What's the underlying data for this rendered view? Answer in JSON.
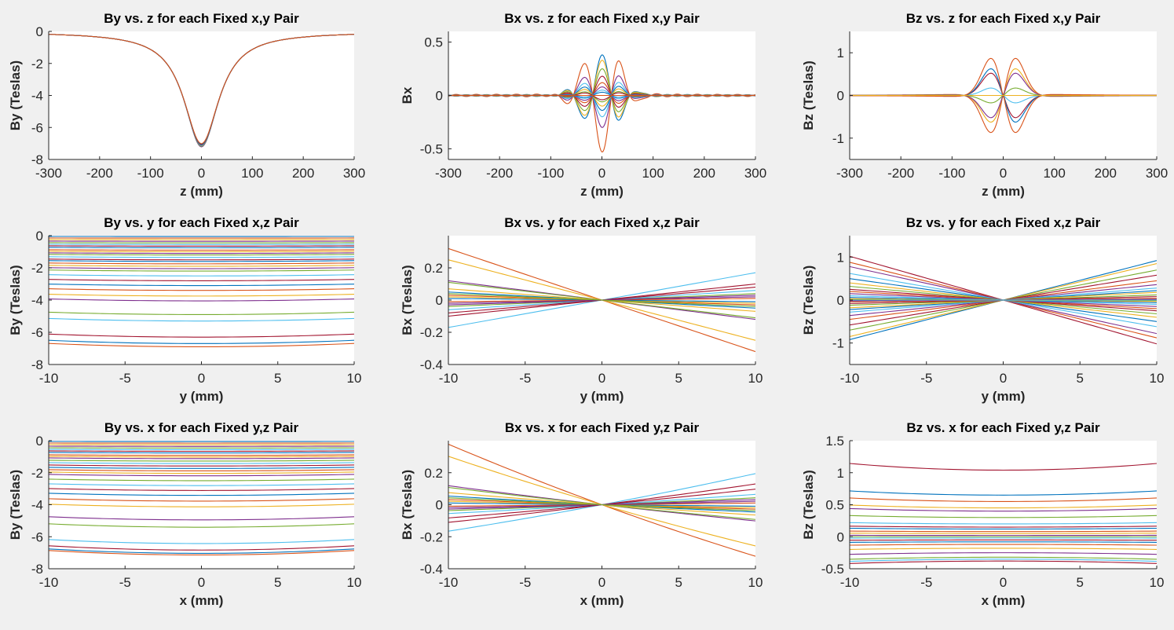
{
  "colors": {
    "background": "#f0f0f0",
    "axes_bg": "#ffffff",
    "axis": "#262626",
    "palette": [
      "#0072bd",
      "#d95319",
      "#edb120",
      "#7e2f8e",
      "#77ac30",
      "#4dbeee",
      "#a2142f"
    ]
  },
  "chart_data": [
    {
      "type": "line",
      "id": "by_z",
      "title": "By vs. z for each Fixed x,y Pair",
      "xlabel": "z (mm)",
      "ylabel": "By (Teslas)",
      "xlim": [
        -300,
        300
      ],
      "ylim": [
        -8,
        0
      ],
      "xticks": [
        -300,
        -200,
        -100,
        0,
        100,
        200,
        300
      ],
      "xticklabels": [
        "-300",
        "-200",
        "-100",
        "0",
        "100",
        "200",
        "300"
      ],
      "yticks": [
        -8,
        -6,
        -4,
        -2,
        0
      ],
      "yticklabels": [
        "-8",
        "-6",
        "-4",
        "-2",
        "0"
      ],
      "series_count": 6,
      "note": "Near-identical dip curves; minimum about -7.1 T at z = 0, rising toward -0.05 T at z = +/-300 mm"
    },
    {
      "type": "line",
      "id": "bx_z",
      "title": "Bx vs. z for each Fixed x,y Pair",
      "xlabel": "z (mm)",
      "ylabel": "Bx",
      "xlim": [
        -300,
        300
      ],
      "ylim": [
        -0.6,
        0.6
      ],
      "xticks": [
        -300,
        -200,
        -100,
        0,
        100,
        200,
        300
      ],
      "xticklabels": [
        "-300",
        "-200",
        "-100",
        "0",
        "100",
        "200",
        "300"
      ],
      "yticks": [
        -0.5,
        0,
        0.5
      ],
      "yticklabels": [
        "-0.5",
        "0",
        "0.5"
      ],
      "peak_amplitudes": [
        0.38,
        -0.53,
        0.33,
        -0.3,
        0.25,
        -0.2,
        0.18,
        -0.14,
        0.12,
        -0.1,
        0.08,
        -0.06,
        0.05,
        -0.04,
        0.03,
        0
      ],
      "note": "Oscillating curves centered at z = 0 decaying with |z|"
    },
    {
      "type": "line",
      "id": "bz_z",
      "title": "Bz vs. z for each Fixed x,y Pair",
      "xlabel": "z (mm)",
      "ylabel": "Bz (Teslas)",
      "xlim": [
        -300,
        300
      ],
      "ylim": [
        -1.5,
        1.5
      ],
      "xticks": [
        -300,
        -200,
        -100,
        0,
        100,
        200,
        300
      ],
      "xticklabels": [
        "-300",
        "-200",
        "-100",
        "0",
        "100",
        "200",
        "300"
      ],
      "yticks": [
        -1,
        0,
        1
      ],
      "yticklabels": [
        "-1",
        "0",
        "1"
      ],
      "lobe_amplitudes": [
        1.0,
        0.72,
        0.6,
        0.2,
        -0.2,
        -0.6,
        -0.72,
        -1.0,
        0
      ],
      "note": "Antisymmetric lobes near z = -20 and z = +20 mm"
    },
    {
      "type": "line",
      "id": "by_y",
      "title": "By vs. y for each Fixed x,z Pair",
      "xlabel": "y (mm)",
      "ylabel": "By (Teslas)",
      "xlim": [
        -10,
        10
      ],
      "ylim": [
        -8,
        0
      ],
      "xticks": [
        -10,
        -5,
        0,
        5,
        10
      ],
      "xticklabels": [
        "-10",
        "-5",
        "0",
        "5",
        "10"
      ],
      "yticks": [
        -8,
        -6,
        -4,
        -2,
        0
      ],
      "yticklabels": [
        "-8",
        "-6",
        "-4",
        "-2",
        "0"
      ],
      "levels": [
        -0.05,
        -0.15,
        -0.25,
        -0.35,
        -0.45,
        -0.55,
        -0.65,
        -0.75,
        -0.9,
        -1.0,
        -1.1,
        -1.2,
        -1.35,
        -1.5,
        -1.6,
        -1.75,
        -1.9,
        -2.05,
        -2.2,
        -2.5,
        -2.8,
        -3.1,
        -3.4,
        -3.75,
        -4.05,
        -4.9,
        -5.3,
        -6.3,
        -6.7,
        -6.9
      ],
      "note": "Nearly flat horizontal lines"
    },
    {
      "type": "line",
      "id": "bx_y",
      "title": "Bx vs. y for each Fixed x,z Pair",
      "xlabel": "y (mm)",
      "ylabel": "Bx (Teslas)",
      "xlim": [
        -10,
        10
      ],
      "ylim": [
        -0.4,
        0.4
      ],
      "xticks": [
        -10,
        -5,
        0,
        5,
        10
      ],
      "xticklabels": [
        "-10",
        "-5",
        "0",
        "5",
        "10"
      ],
      "yticks": [
        -0.4,
        -0.2,
        0,
        0.2
      ],
      "yticklabels": [
        "-0.4",
        "-0.2",
        "0",
        "0.2"
      ],
      "left_values": [
        0.32,
        0.25,
        0.12,
        0.11,
        -0.17,
        -0.1,
        0.05,
        0.03,
        0.02,
        -0.02,
        -0.04,
        -0.06,
        -0.08,
        0.01,
        -0.01,
        0.07,
        -0.03,
        0.04
      ],
      "note": "Lines through the origin; value at y = 10 is the negative of value at y = -10"
    },
    {
      "type": "line",
      "id": "bz_y",
      "title": "Bz vs. y for each Fixed x,z Pair",
      "xlabel": "y (mm)",
      "ylabel": "Bz (Teslas)",
      "xlim": [
        -10,
        10
      ],
      "ylim": [
        -1.5,
        1.5
      ],
      "xticks": [
        -10,
        -5,
        0,
        5,
        10
      ],
      "xticklabels": [
        "-10",
        "-5",
        "0",
        "5",
        "10"
      ],
      "yticks": [
        -1,
        0,
        1
      ],
      "yticklabels": [
        "-1",
        "0",
        "1"
      ],
      "left_values": [
        1.02,
        -0.92,
        0.88,
        -0.85,
        0.78,
        -0.7,
        0.62,
        -0.58,
        0.5,
        -0.45,
        0.4,
        -0.36,
        0.32,
        -0.28,
        0.25,
        -0.22,
        0.2,
        -0.18,
        0.15,
        -0.12,
        0.1,
        -0.08,
        0.06,
        -0.04,
        0.03,
        -0.02,
        0.01,
        0
      ],
      "note": "Fan of lines crossing at the origin"
    },
    {
      "type": "line",
      "id": "by_x",
      "title": "By vs. x for each Fixed y,z Pair",
      "xlabel": "x (mm)",
      "ylabel": "By (Teslas)",
      "xlim": [
        -10,
        10
      ],
      "ylim": [
        -8,
        0
      ],
      "xticks": [
        -10,
        -5,
        0,
        5,
        10
      ],
      "xticklabels": [
        "-10",
        "-5",
        "0",
        "5",
        "10"
      ],
      "yticks": [
        -8,
        -6,
        -4,
        -2,
        0
      ],
      "yticklabels": [
        "-8",
        "-6",
        "-4",
        "-2",
        "0"
      ],
      "levels": [
        -0.05,
        -0.15,
        -0.25,
        -0.35,
        -0.45,
        -0.55,
        -0.65,
        -0.75,
        -0.9,
        -1.0,
        -1.1,
        -1.25,
        -1.4,
        -1.55,
        -1.7,
        -1.85,
        -2.0,
        -2.15,
        -2.45,
        -2.75,
        -3.05,
        -3.35,
        -3.7,
        -4.05,
        -4.85,
        -5.3,
        -6.3,
        -6.7,
        -6.9,
        -7.0
      ],
      "note": "Nearly flat lines with slight curvature"
    },
    {
      "type": "line",
      "id": "bx_x",
      "title": "Bx vs. x for each Fixed y,z Pair",
      "xlabel": "x (mm)",
      "ylabel": "Bx (Teslas)",
      "xlim": [
        -10,
        10
      ],
      "ylim": [
        -0.4,
        0.4
      ],
      "xticks": [
        -10,
        -5,
        0,
        5,
        10
      ],
      "xticklabels": [
        "-10",
        "-5",
        "0",
        "5",
        "10"
      ],
      "yticks": [
        -0.4,
        -0.2,
        0,
        0.2
      ],
      "yticklabels": [
        "-0.4",
        "-0.2",
        "0",
        "0.2"
      ],
      "left_values": [
        0.35,
        0.28,
        0.11,
        0.1,
        -0.18,
        -0.12,
        0.05,
        0.03,
        0.02,
        -0.02,
        -0.04,
        -0.06,
        -0.09,
        0.01,
        -0.01,
        0.07,
        -0.03,
        0.04
      ],
      "note": "Slightly curved lines through the origin"
    },
    {
      "type": "line",
      "id": "bz_x",
      "title": "Bz vs. x for each Fixed y,z Pair",
      "xlabel": "x (mm)",
      "ylabel": "Bz (Teslas)",
      "xlim": [
        -10,
        10
      ],
      "ylim": [
        -0.5,
        1.5
      ],
      "xticks": [
        -10,
        -5,
        0,
        5,
        10
      ],
      "xticklabels": [
        "-10",
        "-5",
        "0",
        "5",
        "10"
      ],
      "yticks": [
        -0.5,
        0,
        0.5,
        1,
        1.5
      ],
      "yticklabels": [
        "-0.5",
        "0",
        "0.5",
        "1",
        "1.5"
      ],
      "levels": [
        1.04,
        0.65,
        0.55,
        0.45,
        0.4,
        0.3,
        0.2,
        0.15,
        0.12,
        0.08,
        0.05,
        0.02,
        0,
        -0.02,
        -0.05,
        -0.08,
        -0.12,
        -0.18,
        -0.25,
        -0.32,
        -0.35,
        -0.38
      ],
      "note": "Nearly flat lines, slightly concave"
    }
  ]
}
